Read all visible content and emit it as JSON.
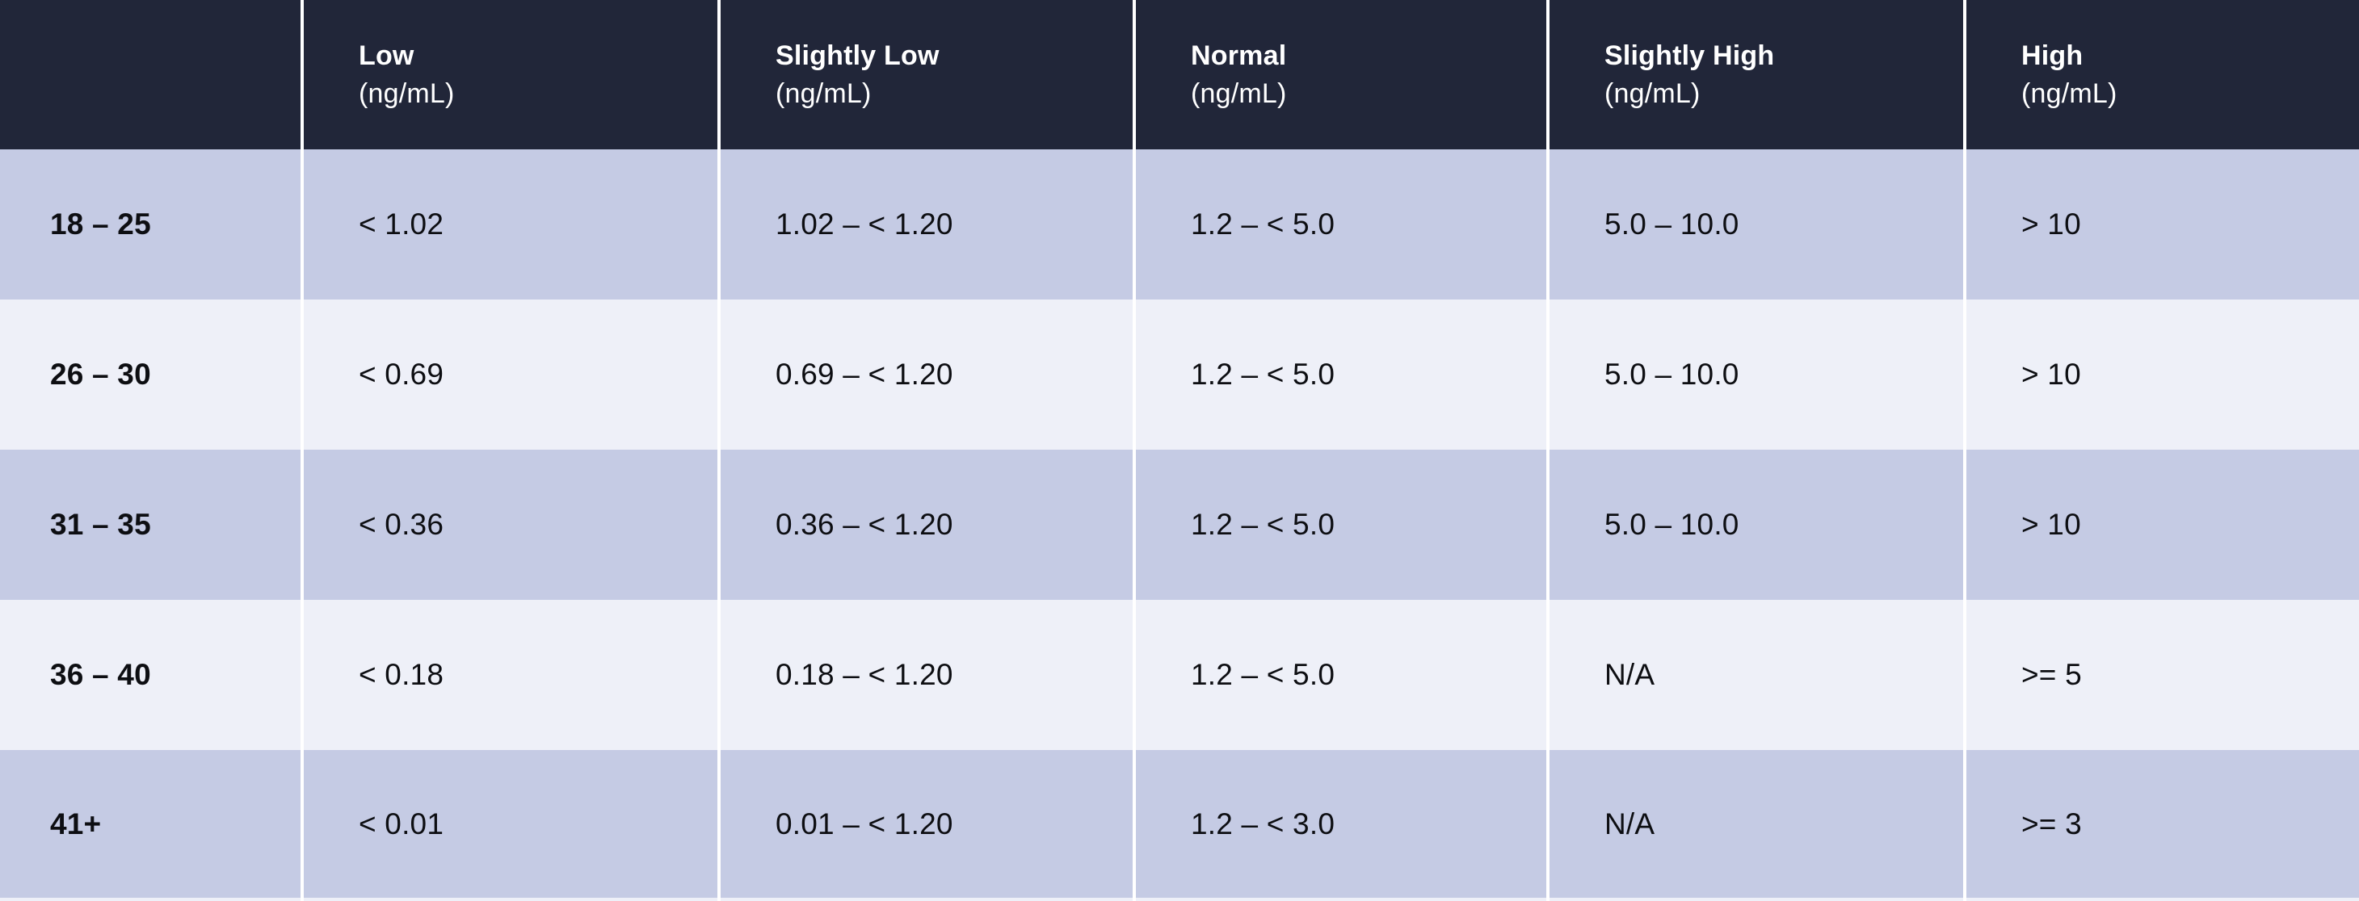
{
  "colors": {
    "header_bg": "#212639",
    "header_text": "#ffffff",
    "row_blue": "#c5cbe4",
    "row_light": "#eef0f8",
    "separator": "#ffffff",
    "cell_text": "#0d0e12"
  },
  "chart_data": {
    "type": "table",
    "columns": [
      {
        "label": "",
        "unit": ""
      },
      {
        "label": "Low",
        "unit": "(ng/mL)"
      },
      {
        "label": "Slightly Low",
        "unit": "(ng/mL)"
      },
      {
        "label": "Normal",
        "unit": "(ng/mL)"
      },
      {
        "label": "Slightly High",
        "unit": "(ng/mL)"
      },
      {
        "label": "High",
        "unit": "(ng/mL)"
      }
    ],
    "rows": [
      {
        "age": "18 – 25",
        "values": [
          "< 1.02",
          "1.02 – < 1.20",
          "1.2 – < 5.0",
          "5.0 – 10.0",
          "> 10"
        ]
      },
      {
        "age": "26 – 30",
        "values": [
          "< 0.69",
          "0.69 – < 1.20",
          "1.2 – < 5.0",
          "5.0 – 10.0",
          "> 10"
        ]
      },
      {
        "age": "31 – 35",
        "values": [
          "< 0.36",
          "0.36 – < 1.20",
          "1.2 – < 5.0",
          "5.0 – 10.0",
          "> 10"
        ]
      },
      {
        "age": "36 – 40",
        "values": [
          "< 0.18",
          "0.18 – < 1.20",
          "1.2 – < 5.0",
          "N/A",
          ">= 5"
        ]
      },
      {
        "age": "41+",
        "values": [
          "< 0.01",
          "0.01 – < 1.20",
          "1.2 – < 3.0",
          "N/A",
          ">= 3"
        ]
      }
    ]
  }
}
